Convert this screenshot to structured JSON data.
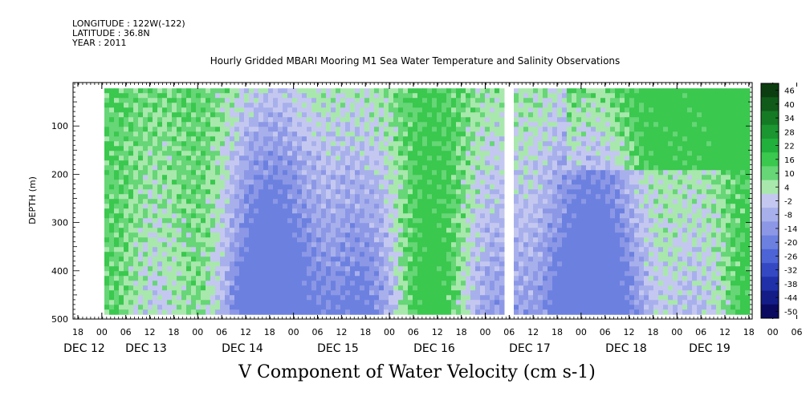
{
  "meta": {
    "longitude": "LONGITUDE : 122W(-122)",
    "latitude": "LATITUDE : 36.8N",
    "year": "YEAR : 2011"
  },
  "chart_data": {
    "type": "heatmap",
    "title": "Hourly Gridded MBARI Mooring M1 Sea Water Temperature and Salinity Observations",
    "bottom_title": "V Component of Water Velocity (cm s-1)",
    "ylabel": "DEPTH (m)",
    "ylim": [
      500,
      10
    ],
    "y_ticks": [
      100,
      200,
      300,
      400,
      500
    ],
    "x_hour_labels": [
      "18",
      "00",
      "06",
      "12",
      "18",
      "00",
      "06",
      "12",
      "18",
      "00",
      "06",
      "12",
      "18",
      "00",
      "06",
      "12",
      "18",
      "00",
      "06",
      "12",
      "18",
      "00",
      "06",
      "12",
      "18",
      "00",
      "06",
      "12",
      "18",
      "00",
      "06",
      "12"
    ],
    "x_day_labels": [
      "DEC 12",
      "DEC 13",
      "DEC 14",
      "DEC 15",
      "DEC 16",
      "DEC 17",
      "DEC 18",
      "DEC 19"
    ],
    "data_gap": {
      "start": "DEC 17 03:00",
      "end": "DEC 17 04:00"
    },
    "colorbar": {
      "labels": [
        "46",
        "40",
        "34",
        "28",
        "22",
        "16",
        "10",
        "4",
        "-2",
        "-8",
        "-14",
        "-20",
        "-26",
        "-32",
        "-38",
        "-44",
        "-50"
      ],
      "colors": [
        "#0c3d10",
        "#105a1a",
        "#157a24",
        "#1b9630",
        "#22b03c",
        "#3ac84e",
        "#66d676",
        "#a8e8ac",
        "#c4c8f0",
        "#a8b0ec",
        "#8c98e6",
        "#6c80e0",
        "#4c64d6",
        "#3448c4",
        "#2030a8",
        "#141c88",
        "#0a0a60"
      ]
    },
    "field": {
      "v_velocity_pattern": "alternating positive (green) and negative (blue) bands through time, near-surface mostly green, mid/deep mostly blue"
    }
  }
}
